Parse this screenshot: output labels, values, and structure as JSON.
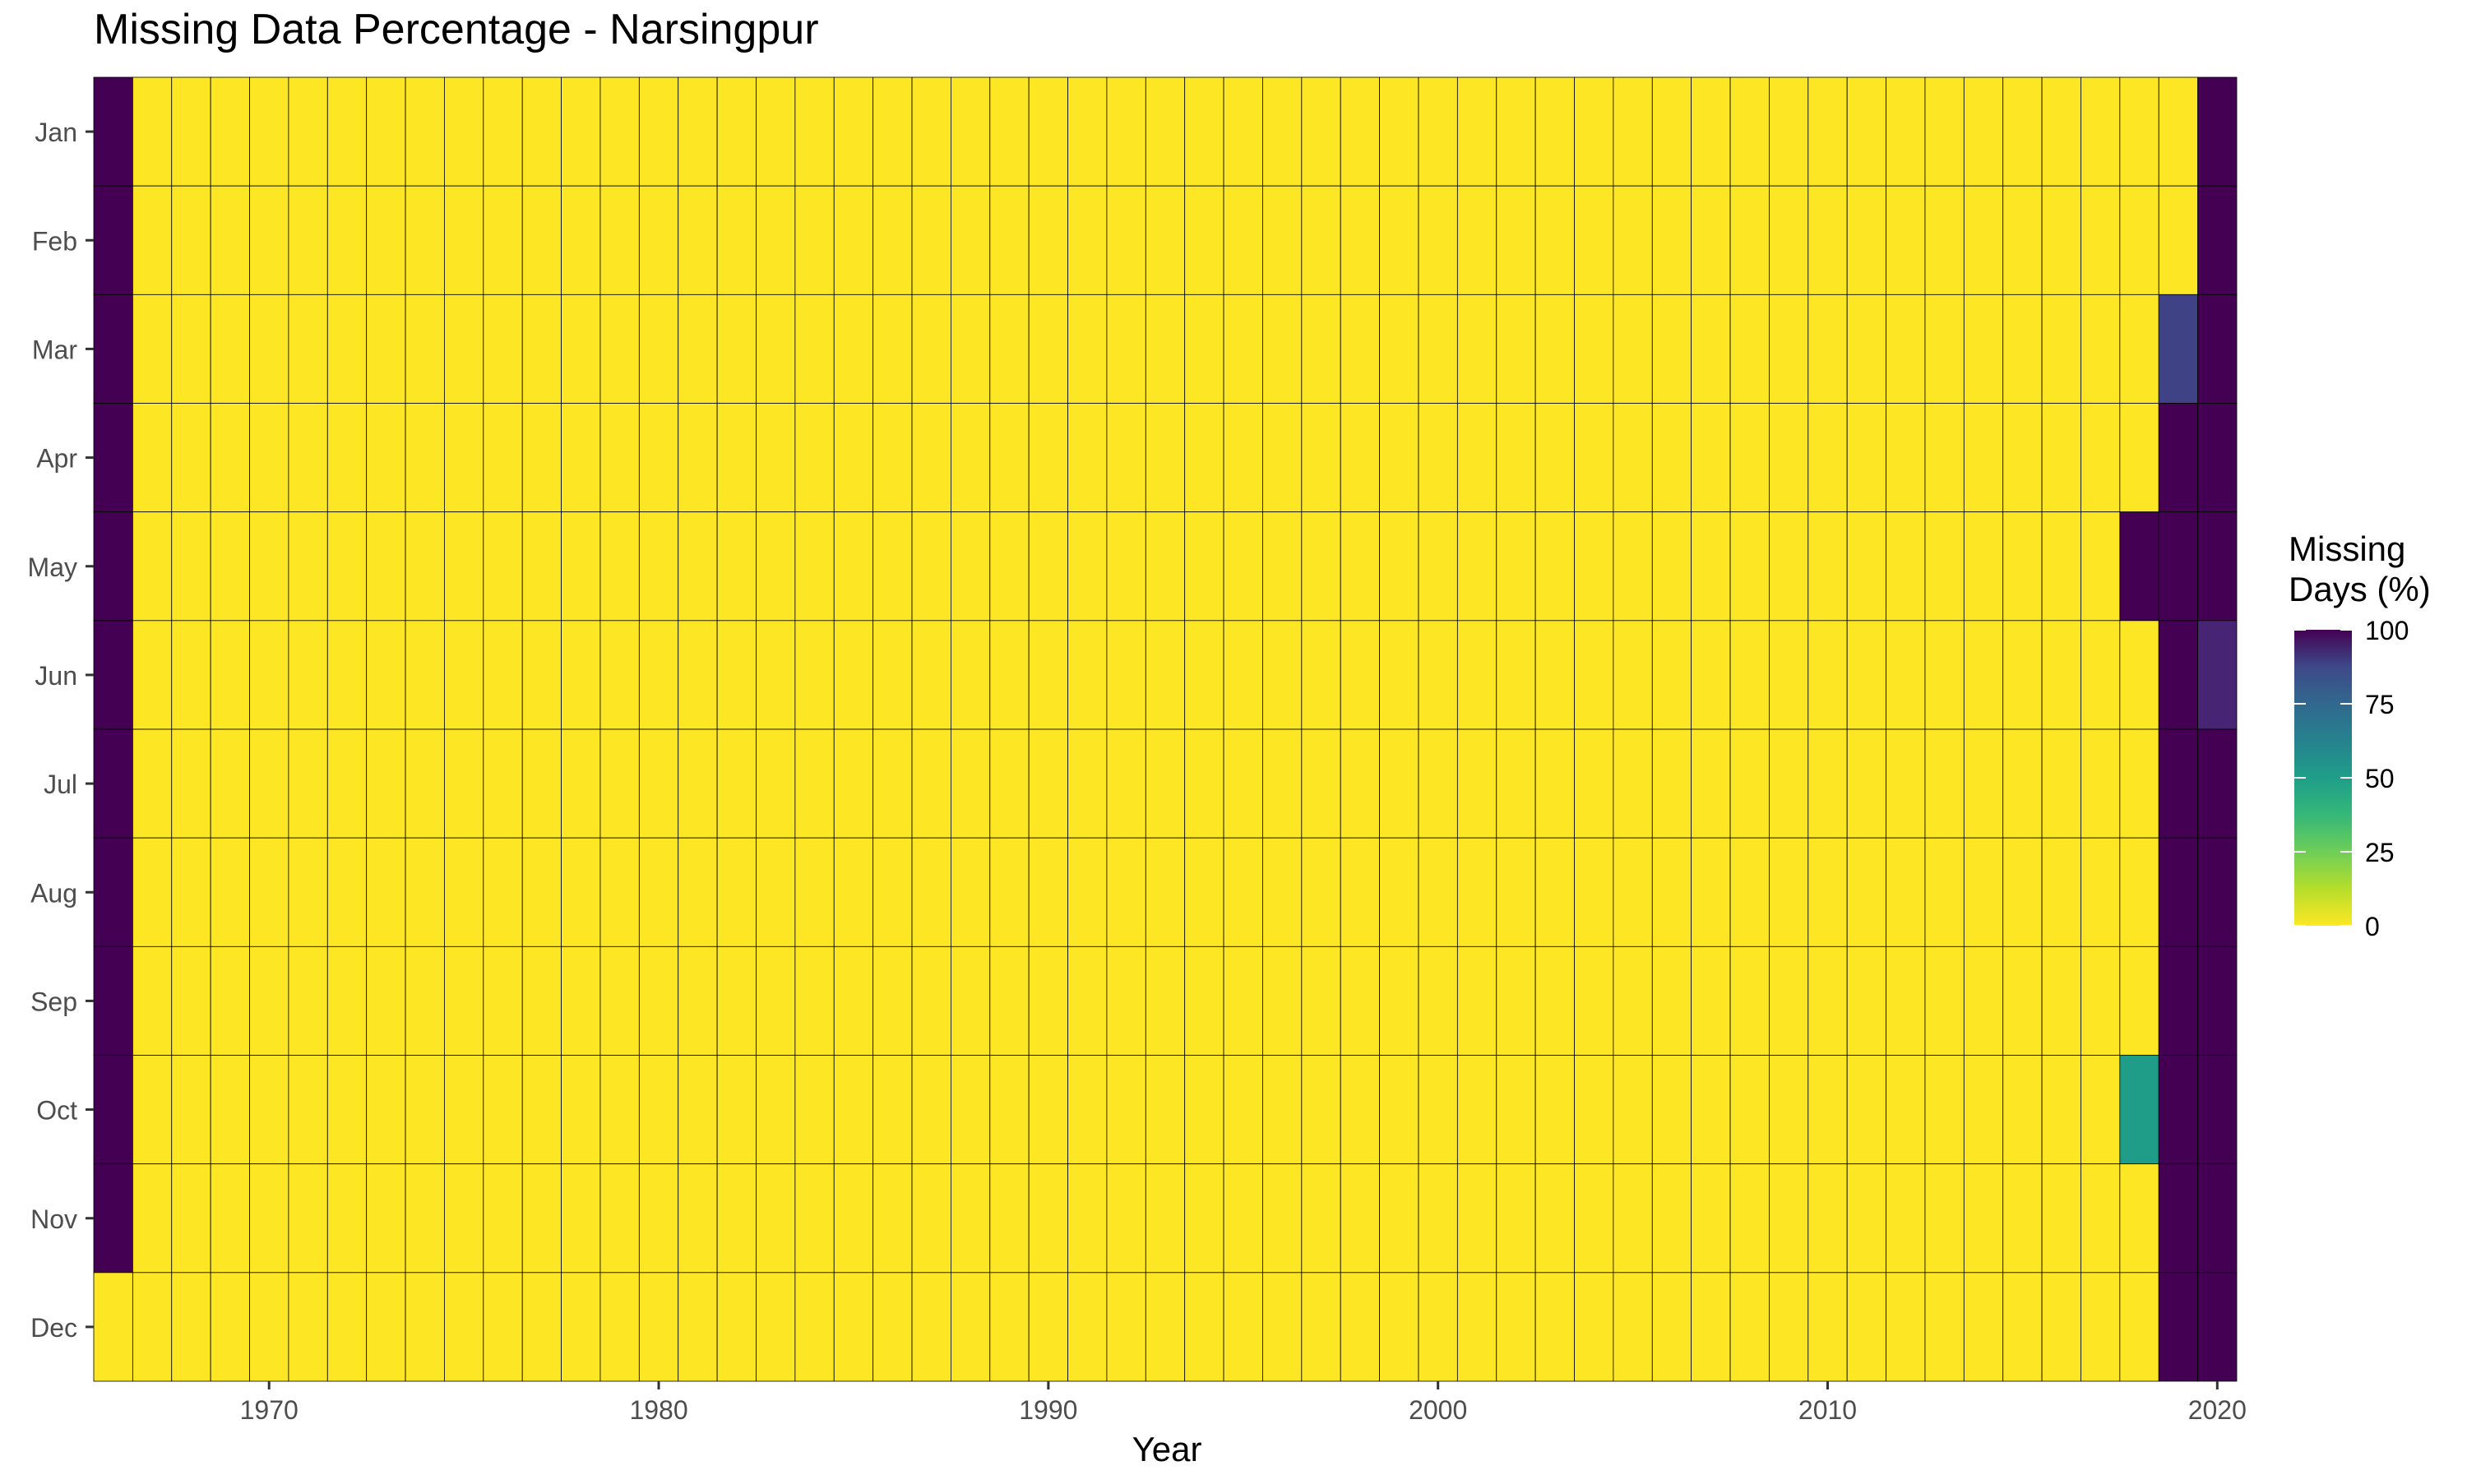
{
  "chart_data": {
    "type": "heatmap",
    "title": "Missing Data Percentage - Narsingpur",
    "xlabel": "Year",
    "ylabel": "",
    "x_tick_labels": [
      "1970",
      "1980",
      "1990",
      "2000",
      "2010",
      "2020"
    ],
    "y_categories": [
      "Jan",
      "Feb",
      "Mar",
      "Apr",
      "May",
      "Jun",
      "Jul",
      "Aug",
      "Sep",
      "Oct",
      "Nov",
      "Dec"
    ],
    "years": [
      1966,
      2020
    ],
    "default_value": 0,
    "missing_cells": [
      {
        "year": 1966,
        "month": "Jan",
        "value": 100
      },
      {
        "year": 1966,
        "month": "Feb",
        "value": 100
      },
      {
        "year": 1966,
        "month": "Mar",
        "value": 100
      },
      {
        "year": 1966,
        "month": "Apr",
        "value": 100
      },
      {
        "year": 1966,
        "month": "May",
        "value": 100
      },
      {
        "year": 1966,
        "month": "Jun",
        "value": 100
      },
      {
        "year": 1966,
        "month": "Jul",
        "value": 100
      },
      {
        "year": 1966,
        "month": "Aug",
        "value": 100
      },
      {
        "year": 1966,
        "month": "Sep",
        "value": 100
      },
      {
        "year": 1966,
        "month": "Oct",
        "value": 100
      },
      {
        "year": 1966,
        "month": "Nov",
        "value": 100
      },
      {
        "year": 2018,
        "month": "May",
        "value": 100
      },
      {
        "year": 2018,
        "month": "Oct",
        "value": 45
      },
      {
        "year": 2019,
        "month": "Mar",
        "value": 80
      },
      {
        "year": 2019,
        "month": "Apr",
        "value": 100
      },
      {
        "year": 2019,
        "month": "May",
        "value": 100
      },
      {
        "year": 2019,
        "month": "Jun",
        "value": 100
      },
      {
        "year": 2019,
        "month": "Jul",
        "value": 100
      },
      {
        "year": 2019,
        "month": "Aug",
        "value": 100
      },
      {
        "year": 2019,
        "month": "Sep",
        "value": 100
      },
      {
        "year": 2019,
        "month": "Oct",
        "value": 100
      },
      {
        "year": 2019,
        "month": "Nov",
        "value": 100
      },
      {
        "year": 2019,
        "month": "Dec",
        "value": 100
      },
      {
        "year": 2020,
        "month": "Jan",
        "value": 100
      },
      {
        "year": 2020,
        "month": "Feb",
        "value": 100
      },
      {
        "year": 2020,
        "month": "Mar",
        "value": 100
      },
      {
        "year": 2020,
        "month": "Apr",
        "value": 100
      },
      {
        "year": 2020,
        "month": "May",
        "value": 100
      },
      {
        "year": 2020,
        "month": "Jun",
        "value": 90
      },
      {
        "year": 2020,
        "month": "Jul",
        "value": 100
      },
      {
        "year": 2020,
        "month": "Aug",
        "value": 100
      },
      {
        "year": 2020,
        "month": "Sep",
        "value": 100
      },
      {
        "year": 2020,
        "month": "Oct",
        "value": 100
      },
      {
        "year": 2020,
        "month": "Nov",
        "value": 100
      },
      {
        "year": 2020,
        "month": "Dec",
        "value": 100
      }
    ],
    "x_range": [
      1965.5,
      2020.5
    ],
    "legend": {
      "title_line1": "Missing",
      "title_line2": "Days (%)",
      "ticks": [
        "0",
        "25",
        "50",
        "75",
        "100"
      ],
      "range": [
        0,
        100
      ],
      "placement": "right"
    },
    "colorscale": "viridis-reversed",
    "grid": false
  }
}
